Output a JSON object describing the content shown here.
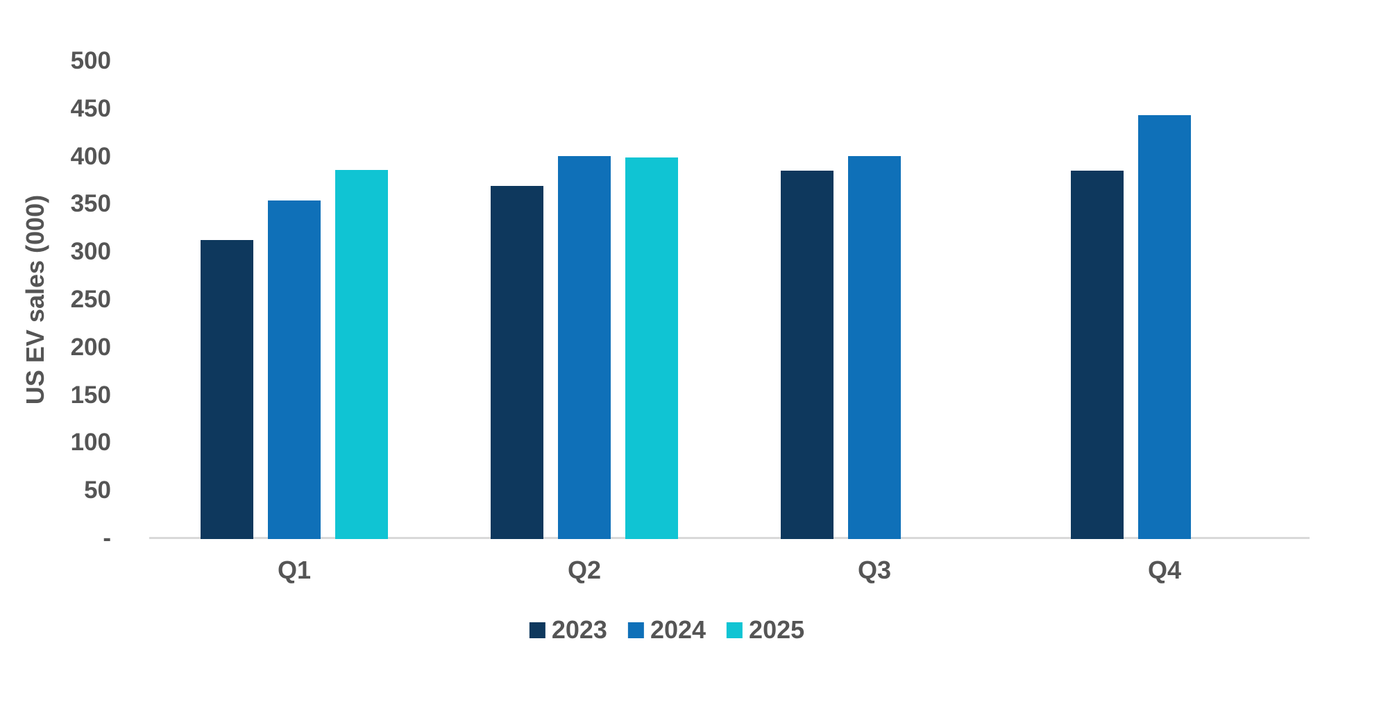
{
  "chart_data": {
    "type": "bar",
    "title": "",
    "xlabel": "",
    "ylabel": "US EV sales (000)",
    "categories": [
      "Q1",
      "Q2",
      "Q3",
      "Q4"
    ],
    "series": [
      {
        "name": "2023",
        "color": "#0e385d",
        "values": [
          313,
          370,
          386,
          386
        ]
      },
      {
        "name": "2024",
        "color": "#0f70b8",
        "values": [
          355,
          401,
          401,
          444
        ]
      },
      {
        "name": "2025",
        "color": "#10c4d3",
        "values": [
          387,
          400,
          null,
          null
        ]
      }
    ],
    "ylim": [
      0,
      500
    ],
    "ytick_interval": 50,
    "yticks": [
      {
        "label": "500",
        "value": 500
      },
      {
        "label": "450",
        "value": 450
      },
      {
        "label": "400",
        "value": 400
      },
      {
        "label": "350",
        "value": 350
      },
      {
        "label": "300",
        "value": 300
      },
      {
        "label": "250",
        "value": 250
      },
      {
        "label": "200",
        "value": 200
      },
      {
        "label": "150",
        "value": 150
      },
      {
        "label": "100",
        "value": 100
      },
      {
        "label": "50",
        "value": 50
      },
      {
        "label": "-",
        "value": 0
      }
    ],
    "grid": false,
    "legend_position": "bottom",
    "axis_line_color": "#d9d9d9",
    "text_color": "#555555",
    "background_color": "#ffffff"
  }
}
